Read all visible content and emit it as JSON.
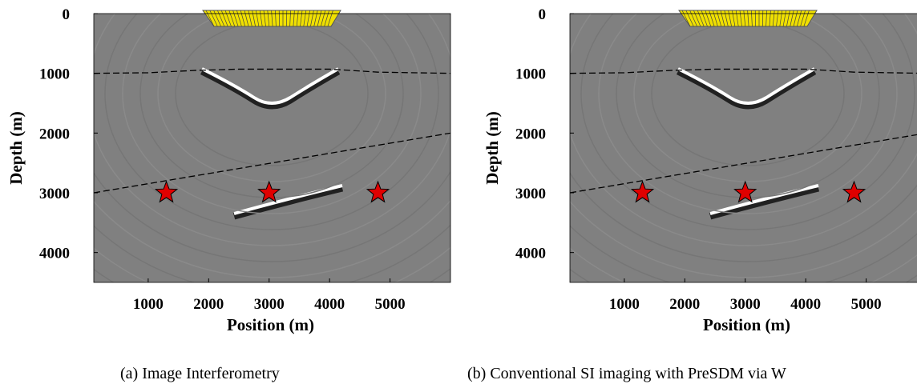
{
  "chart_data": [
    {
      "type": "scatter",
      "caption": "(a) Image Interferometry",
      "xlabel": "Position (m)",
      "ylabel": "Depth (m)",
      "xlim": [
        100,
        6000
      ],
      "ylim": [
        0,
        4500
      ],
      "y_inverted": true,
      "xticks": [
        1000,
        2000,
        3000,
        4000,
        5000
      ],
      "yticks": [
        0,
        1000,
        2000,
        3000,
        4000
      ],
      "points": {
        "x": [
          1300,
          3000,
          4800
        ],
        "y": [
          3000,
          3000,
          3000
        ],
        "color": "#e00000"
      },
      "interfaces": [
        {
          "x": [
            100,
            1000,
            1800,
            2500,
            4000,
            4800,
            6000
          ],
          "y": [
            1000,
            990,
            950,
            930,
            930,
            980,
            1000
          ]
        },
        {
          "x": [
            100,
            6000
          ],
          "y": [
            3000,
            2000
          ]
        }
      ]
    },
    {
      "type": "scatter",
      "caption": "(b) Conventional SI imaging with PreSDM via W",
      "xlabel": "Position (m)",
      "ylabel": "Depth (m)",
      "xlim": [
        100,
        6000
      ],
      "ylim": [
        0,
        4500
      ],
      "y_inverted": true,
      "xticks": [
        1000,
        2000,
        3000,
        4000,
        5000
      ],
      "yticks": [
        0,
        1000,
        2000,
        3000,
        4000
      ],
      "points": {
        "x": [
          1300,
          3000,
          4800
        ],
        "y": [
          3000,
          3000,
          3000
        ],
        "color": "#e00000"
      },
      "interfaces": [
        {
          "x": [
            100,
            1000,
            1800,
            2500,
            4000,
            4800,
            6000
          ],
          "y": [
            1000,
            990,
            950,
            930,
            930,
            980,
            1000
          ]
        },
        {
          "x": [
            100,
            6000
          ],
          "y": [
            3000,
            2000
          ]
        }
      ]
    }
  ]
}
